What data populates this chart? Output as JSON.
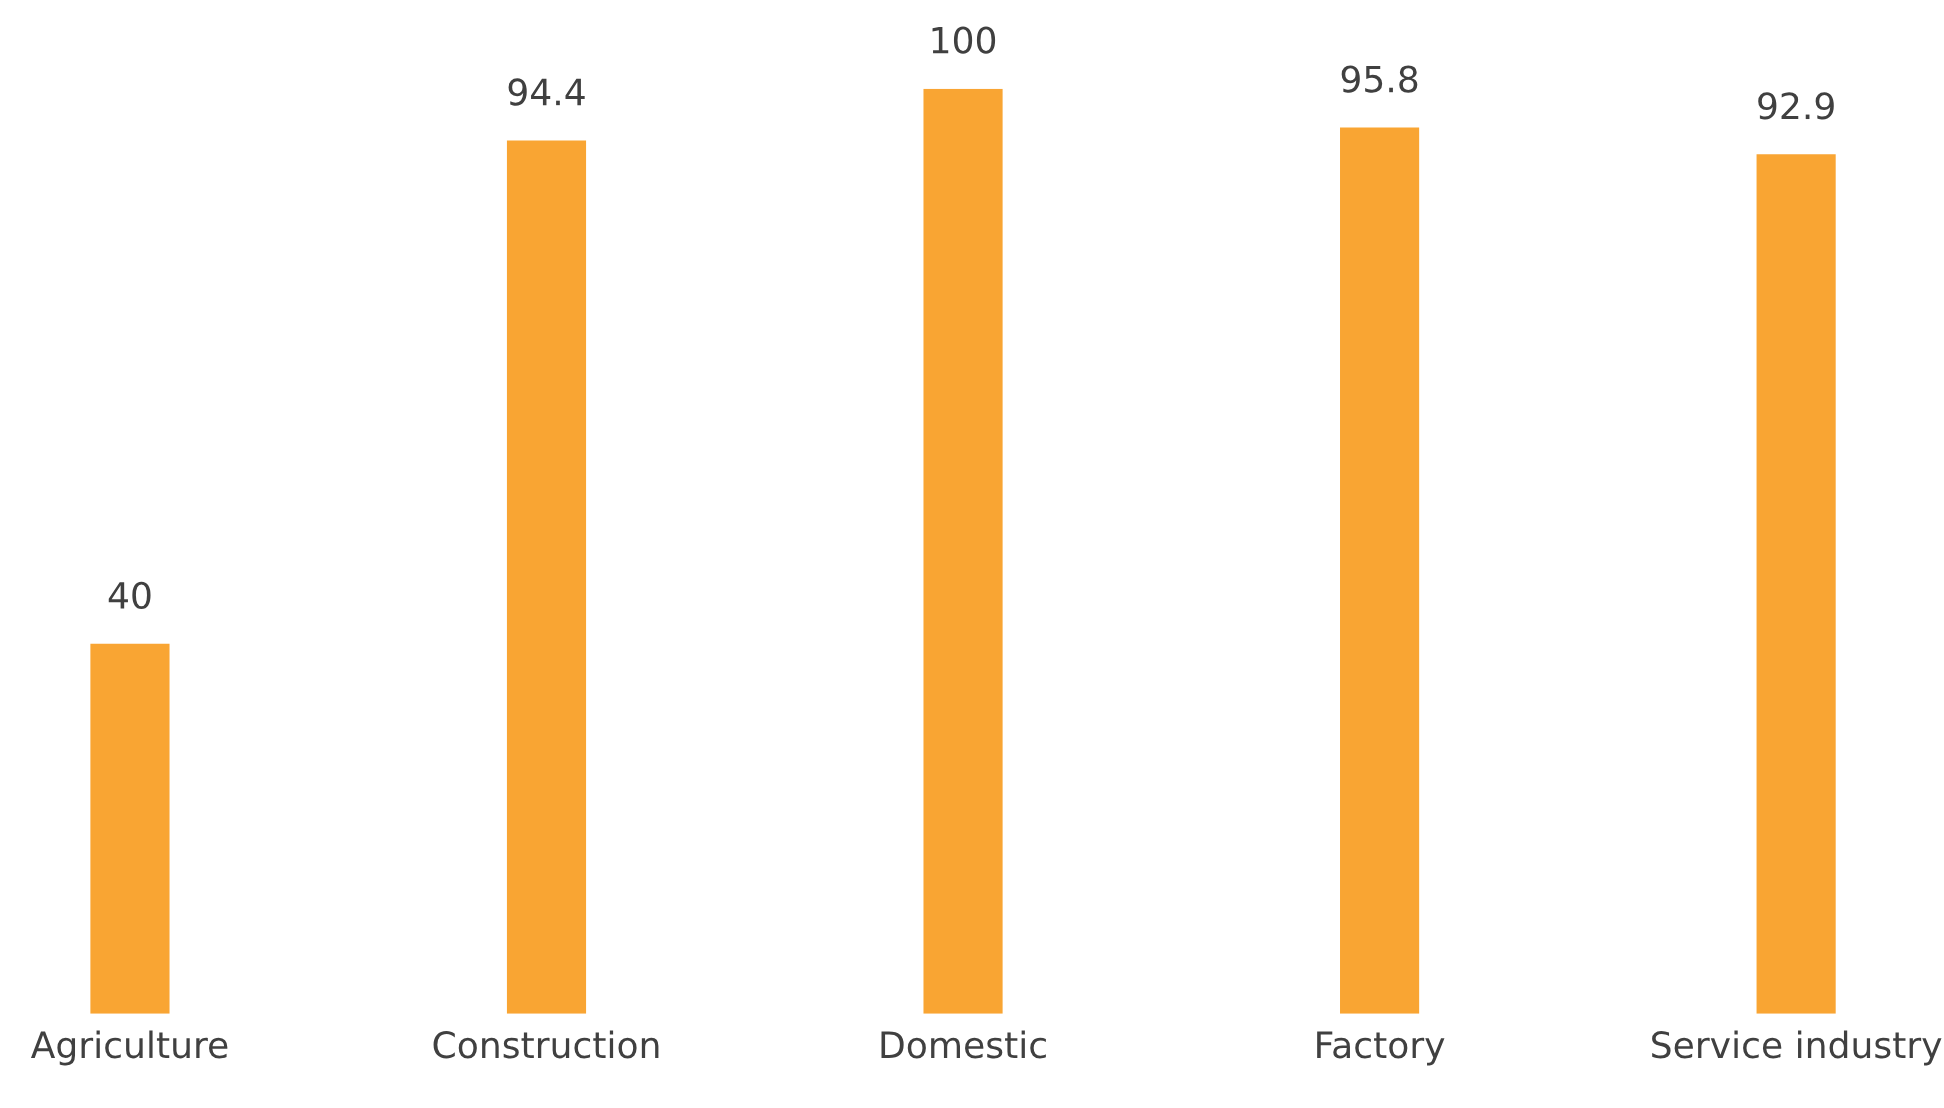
{
  "chart_data": {
    "type": "bar",
    "categories": [
      "Agriculture",
      "Construction",
      "Domestic",
      "Factory",
      "Service industry"
    ],
    "values": [
      40,
      94.4,
      100,
      95.8,
      92.9
    ],
    "color": "#f9a533",
    "ylim": [
      0,
      100
    ],
    "tick_labels": "x",
    "data_labels": true,
    "grid": false,
    "legend": false
  }
}
